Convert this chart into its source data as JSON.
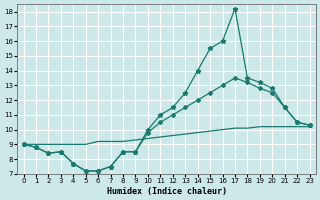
{
  "title": "",
  "xlabel": "Humidex (Indice chaleur)",
  "ylabel": "",
  "bg_color": "#cce8e8",
  "grid_color": "#ffffff",
  "line_color": "#1a7a6e",
  "xlim": [
    -0.5,
    23.5
  ],
  "ylim": [
    7,
    18.5
  ],
  "yticks": [
    7,
    8,
    9,
    10,
    11,
    12,
    13,
    14,
    15,
    16,
    17,
    18
  ],
  "xticks": [
    0,
    1,
    2,
    3,
    4,
    5,
    6,
    7,
    8,
    9,
    10,
    11,
    12,
    13,
    14,
    15,
    16,
    17,
    18,
    19,
    20,
    21,
    22,
    23
  ],
  "line1_x": [
    0,
    1,
    2,
    3,
    4,
    5,
    6,
    7,
    8,
    9,
    10,
    11,
    12,
    13,
    14,
    15,
    16,
    17,
    18,
    19,
    20,
    21,
    22,
    23
  ],
  "line1_y": [
    9.0,
    8.8,
    8.4,
    8.5,
    7.7,
    7.2,
    7.2,
    7.5,
    8.5,
    8.5,
    10.0,
    11.0,
    11.5,
    12.5,
    14.0,
    15.5,
    16.0,
    18.2,
    13.5,
    13.2,
    12.8,
    11.5,
    10.5,
    10.3
  ],
  "line2_x": [
    0,
    1,
    2,
    3,
    4,
    5,
    6,
    7,
    8,
    9,
    10,
    11,
    12,
    13,
    14,
    15,
    16,
    17,
    18,
    19,
    20,
    21,
    22,
    23
  ],
  "line2_y": [
    9.0,
    8.8,
    8.4,
    8.5,
    7.7,
    7.2,
    7.2,
    7.5,
    8.5,
    8.5,
    9.8,
    10.5,
    11.0,
    11.5,
    12.0,
    12.5,
    13.0,
    13.5,
    13.2,
    12.8,
    12.5,
    11.5,
    10.5,
    10.3
  ],
  "line3_x": [
    0,
    1,
    2,
    3,
    4,
    5,
    6,
    7,
    8,
    9,
    10,
    11,
    12,
    13,
    14,
    15,
    16,
    17,
    18,
    19,
    20,
    21,
    22,
    23
  ],
  "line3_y": [
    9.0,
    9.0,
    9.0,
    9.0,
    9.0,
    9.0,
    9.2,
    9.2,
    9.2,
    9.3,
    9.4,
    9.5,
    9.6,
    9.7,
    9.8,
    9.9,
    10.0,
    10.1,
    10.1,
    10.2,
    10.2,
    10.2,
    10.2,
    10.2
  ]
}
